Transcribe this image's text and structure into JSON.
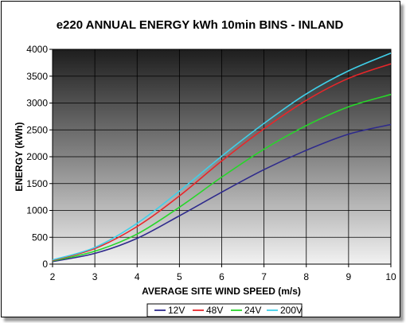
{
  "chart_data": {
    "type": "line",
    "title": "e220 ANNUAL ENERGY kWh 10min BINS - INLAND",
    "xlabel": "AVERAGE SITE WIND SPEED (m/s)",
    "ylabel": "ENERGY (kWh)",
    "xlim": [
      2,
      10
    ],
    "ylim": [
      0,
      4000
    ],
    "xticks": [
      "2",
      "3",
      "4",
      "5",
      "6",
      "7",
      "8",
      "9",
      "10"
    ],
    "yticks": [
      "0",
      "500",
      "1000",
      "1500",
      "2000",
      "2500",
      "3000",
      "3500",
      "4000"
    ],
    "grid": true,
    "legend_position": "bottom",
    "background": "gradient dark grey to light grey",
    "x": [
      2,
      3,
      4,
      5,
      6,
      7,
      8,
      9,
      10
    ],
    "series": [
      {
        "name": "12V",
        "color": "#2e2a8c",
        "values": [
          50,
          200,
          480,
          900,
          1340,
          1760,
          2120,
          2420,
          2600
        ]
      },
      {
        "name": "48V",
        "color": "#e8262a",
        "values": [
          70,
          290,
          700,
          1270,
          1920,
          2520,
          3050,
          3460,
          3730
        ]
      },
      {
        "name": "24V",
        "color": "#27d62a",
        "values": [
          60,
          240,
          560,
          1060,
          1620,
          2140,
          2580,
          2930,
          3160
        ]
      },
      {
        "name": "200V",
        "color": "#3fd0ea",
        "values": [
          80,
          310,
          760,
          1360,
          2010,
          2620,
          3170,
          3600,
          3930
        ]
      }
    ]
  }
}
